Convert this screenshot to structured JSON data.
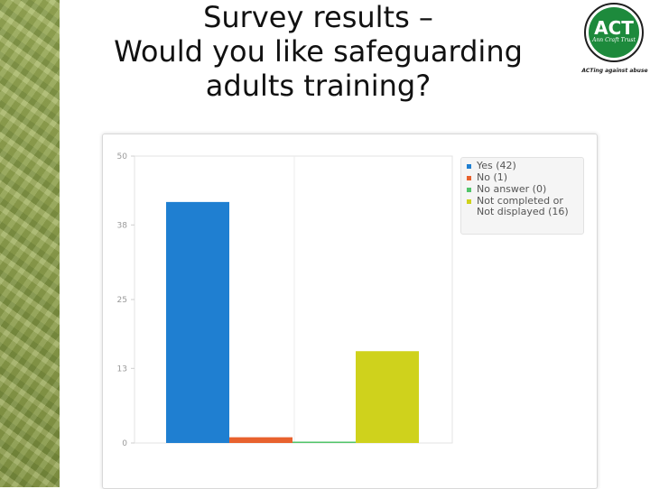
{
  "slide": {
    "title_lines": [
      "Survey results –",
      "Would you like safeguarding",
      "adults training?"
    ]
  },
  "logo": {
    "text": "ACT",
    "subtext": "Ann Craft Trust",
    "tagline": "ACTing against abuse",
    "brand_color": "#1d8a3c"
  },
  "colors": {
    "side_strip": "#93a650"
  },
  "chart_data": {
    "type": "bar",
    "categories": [
      "Yes",
      "No",
      "No answer",
      "Not completed or Not displayed"
    ],
    "values": [
      42,
      1,
      0,
      16
    ],
    "colors": [
      "#1f7fd1",
      "#e8622e",
      "#52c46a",
      "#cfd21c"
    ],
    "legend": [
      "Yes (42)",
      "No (1)",
      "No answer (0)",
      "Not completed or Not displayed (16)"
    ],
    "legend_position": "top-right",
    "y_ticks": [
      "0",
      "13",
      "25",
      "38",
      "50"
    ],
    "ylim": [
      0,
      50
    ],
    "grid": true,
    "title": "",
    "xlabel": "",
    "ylabel": ""
  }
}
